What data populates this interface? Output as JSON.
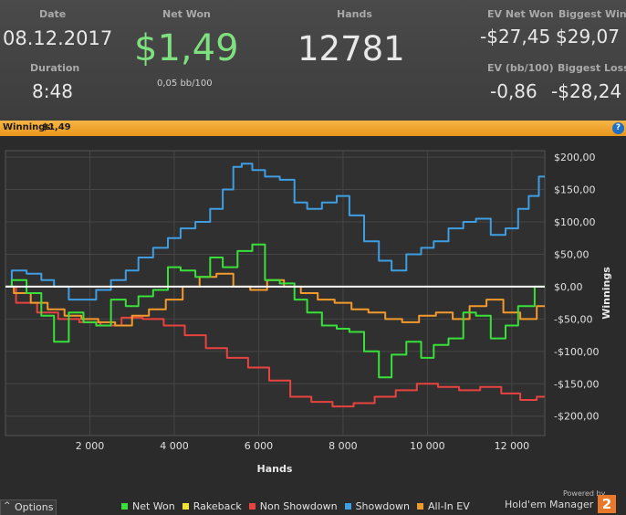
{
  "header": {
    "date_label": "Date",
    "date": "08.12.2017",
    "duration_label": "Duration",
    "duration": "8:48",
    "net_won_label": "Net Won",
    "net_won": "$1,49",
    "net_won_bb": "0,05 bb/100",
    "hands_label": "Hands",
    "hands": "12781",
    "ev_net_won_label": "EV Net Won",
    "ev_net_won": "-$27,45",
    "biggest_win_label": "Biggest Win",
    "biggest_win": "$29,07",
    "ev_bb_label": "EV (bb/100)",
    "ev_bb": "-0,86",
    "biggest_loss_label": "Biggest Loss",
    "biggest_loss": "-$28,24"
  },
  "bar": {
    "label": "Winnings:",
    "value": "$1,49",
    "help_icon": "?"
  },
  "options_label": "Options",
  "brand": {
    "powered": "Powered by",
    "name": "Hold'em Manager",
    "badge": "2"
  },
  "colors": {
    "net_won": "#39e03a",
    "rakeback": "#f2e232",
    "non_showdown": "#e8433f",
    "showdown": "#3f9de2",
    "allin_ev": "#f39a2c",
    "zero": "#ffffff"
  },
  "chart_data": {
    "type": "line",
    "xlabel": "Hands",
    "ylabel": "Winnings",
    "xlim": [
      0,
      12781
    ],
    "ylim": [
      -230,
      210
    ],
    "x_ticks": [
      2000,
      4000,
      6000,
      8000,
      10000,
      12000
    ],
    "x_tick_labels": [
      "2 000",
      "4 000",
      "6 000",
      "8 000",
      "10 000",
      "12 000"
    ],
    "y_ticks": [
      200,
      150,
      100,
      50,
      0,
      -50,
      -100,
      -150,
      -200
    ],
    "y_tick_labels": [
      "$200,00",
      "$150,00",
      "$100,00",
      "$50,00",
      "$0,00",
      "-$50,00",
      "-$100,00",
      "-$150,00",
      "-$200,00"
    ],
    "grid": true,
    "legend_position": "bottom",
    "series": [
      {
        "name": "Net Won",
        "color": "#39e03a",
        "x": [
          0,
          300,
          700,
          1000,
          1300,
          1700,
          2000,
          2300,
          2700,
          3000,
          3300,
          3700,
          4000,
          4300,
          4700,
          5000,
          5300,
          5700,
          6000,
          6300,
          6700,
          7000,
          7300,
          7700,
          8000,
          8300,
          8700,
          9000,
          9300,
          9700,
          10000,
          10300,
          10700,
          11000,
          11300,
          11700,
          12000,
          12300,
          12781
        ],
        "y": [
          0,
          10,
          -10,
          -45,
          -85,
          -40,
          -55,
          -60,
          -20,
          -30,
          -15,
          -5,
          30,
          25,
          15,
          45,
          30,
          55,
          65,
          10,
          5,
          -20,
          -40,
          -60,
          -65,
          -70,
          -100,
          -140,
          -105,
          -85,
          -110,
          -90,
          -80,
          -40,
          -45,
          -80,
          -60,
          -30,
          0
        ]
      },
      {
        "name": "Rakeback",
        "color": "#f2e232",
        "x": [
          0,
          12781
        ],
        "y": [
          0,
          0
        ]
      },
      {
        "name": "Non Showdown",
        "color": "#e8433f",
        "x": [
          0,
          500,
          1000,
          1500,
          2000,
          2500,
          3000,
          3500,
          4000,
          4500,
          5000,
          5500,
          6000,
          6500,
          7000,
          7500,
          8000,
          8500,
          9000,
          9500,
          10000,
          10500,
          11000,
          11500,
          12000,
          12400,
          12781
        ],
        "y": [
          0,
          -25,
          -40,
          -50,
          -55,
          -60,
          -48,
          -50,
          -60,
          -75,
          -95,
          -110,
          -125,
          -145,
          -170,
          -178,
          -185,
          -180,
          -170,
          -160,
          -150,
          -155,
          -160,
          -155,
          -165,
          -175,
          -170
        ]
      },
      {
        "name": "Showdown",
        "color": "#3f9de2",
        "x": [
          0,
          300,
          700,
          1000,
          1300,
          1700,
          2000,
          2300,
          2700,
          3000,
          3300,
          3700,
          4000,
          4300,
          4700,
          5000,
          5300,
          5500,
          5700,
          6000,
          6300,
          6700,
          7000,
          7300,
          7700,
          8000,
          8300,
          8700,
          9000,
          9300,
          9700,
          10000,
          10300,
          10700,
          11000,
          11300,
          11700,
          12000,
          12300,
          12500,
          12781
        ],
        "y": [
          0,
          25,
          20,
          10,
          0,
          -20,
          -20,
          -5,
          10,
          25,
          45,
          60,
          75,
          90,
          100,
          120,
          150,
          185,
          190,
          180,
          170,
          165,
          130,
          120,
          130,
          140,
          110,
          70,
          40,
          25,
          50,
          60,
          70,
          90,
          100,
          105,
          80,
          90,
          120,
          140,
          170
        ]
      },
      {
        "name": "All-In EV",
        "color": "#f39a2c",
        "x": [
          0,
          400,
          800,
          1200,
          1600,
          2000,
          2400,
          2800,
          3200,
          3600,
          4000,
          4400,
          4800,
          5200,
          5600,
          6000,
          6400,
          6800,
          7200,
          7600,
          8000,
          8400,
          8800,
          9200,
          9600,
          10000,
          10400,
          10800,
          11200,
          11600,
          12000,
          12400,
          12781
        ],
        "y": [
          0,
          -10,
          -25,
          -35,
          -45,
          -50,
          -55,
          -60,
          -45,
          -35,
          -20,
          0,
          15,
          20,
          0,
          -5,
          10,
          0,
          -10,
          -20,
          -25,
          -35,
          -40,
          -50,
          -55,
          -45,
          -40,
          -50,
          -30,
          -20,
          -40,
          -50,
          -30
        ]
      }
    ]
  }
}
